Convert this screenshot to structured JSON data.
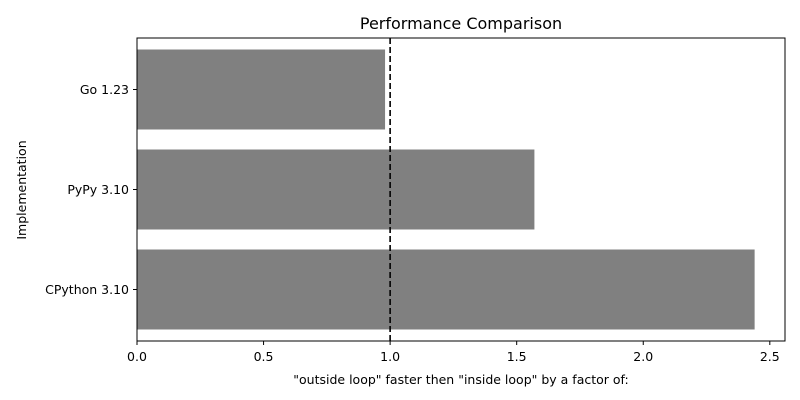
{
  "chart_data": {
    "type": "bar",
    "orientation": "horizontal",
    "title": "Performance Comparison",
    "xlabel": "\"outside loop\" faster then \"inside loop\" by a factor of:",
    "ylabel": "Implementation",
    "categories": [
      "CPython 3.10",
      "PyPy 3.10",
      "Go 1.23"
    ],
    "values": [
      2.44,
      1.57,
      0.98
    ],
    "xlim": [
      0,
      2.56
    ],
    "xticks": [
      0.0,
      0.5,
      1.0,
      1.5,
      2.0,
      2.5
    ],
    "xtick_labels": [
      "0.0",
      "0.5",
      "1.0",
      "1.5",
      "2.0",
      "2.5"
    ],
    "reference_line": {
      "x": 1.0,
      "style": "dashed",
      "color": "#000000"
    },
    "bar_color": "#808080",
    "grid": false,
    "legend": "none"
  }
}
